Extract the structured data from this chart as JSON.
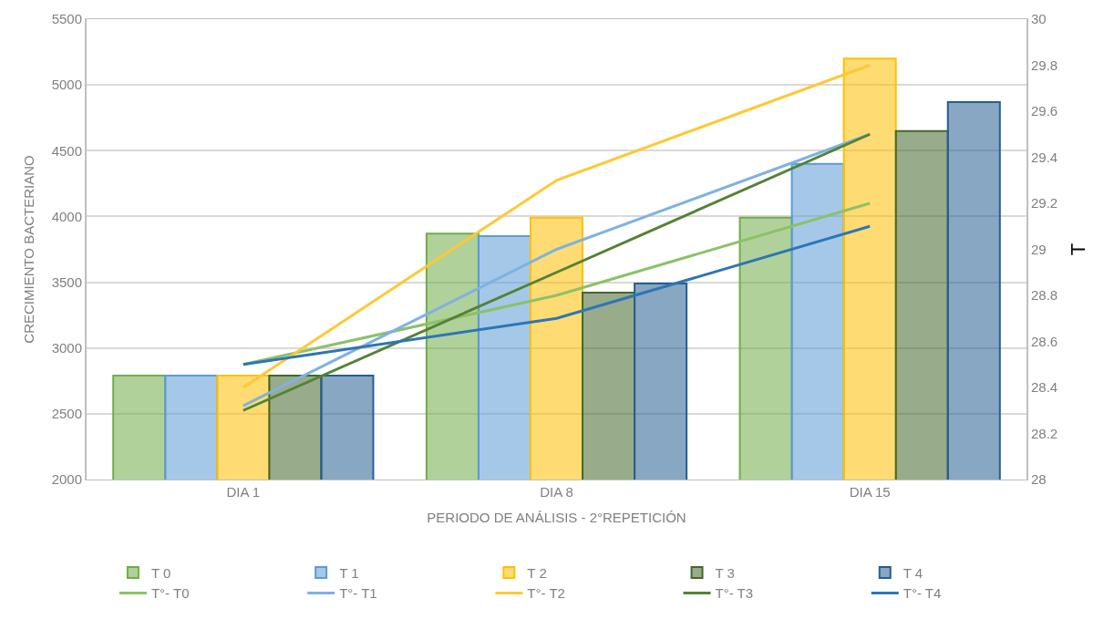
{
  "chart_data": {
    "type": "bar",
    "xlabel": "PERIODO DE ANÁLISIS - 2°REPETICIÓN",
    "ylabel": "CRECIMIENTO BACTERIANO",
    "y2label": "T",
    "categories": [
      "DIA 1",
      "DIA 8",
      "DIA 15"
    ],
    "series": [
      {
        "name": "T 0",
        "color": "#70ad47",
        "values": [
          2790,
          3870,
          3990
        ]
      },
      {
        "name": "T 1",
        "color": "#5b9bd5",
        "values": [
          2790,
          3850,
          4400
        ]
      },
      {
        "name": "T 2",
        "color": "#ffc000",
        "values": [
          2790,
          3990,
          5200
        ]
      },
      {
        "name": "T 3",
        "color": "#43682b",
        "values": [
          2790,
          3420,
          4650
        ]
      },
      {
        "name": "T 4",
        "color": "#255e91",
        "values": [
          2790,
          3490,
          4870
        ]
      },
      {
        "name": "T°- T0",
        "type": "line",
        "axis": "y2",
        "color": "#8cc168",
        "values": [
          28.5,
          28.8,
          29.2
        ]
      },
      {
        "name": "T°- T1",
        "type": "line",
        "axis": "y2",
        "color": "#7fb2e0",
        "values": [
          28.32,
          29.0,
          29.5
        ]
      },
      {
        "name": "T°- T2",
        "type": "line",
        "axis": "y2",
        "color": "#ffc833",
        "values": [
          28.4,
          29.3,
          29.8
        ]
      },
      {
        "name": "T°- T3",
        "type": "line",
        "axis": "y2",
        "color": "#548235",
        "values": [
          28.3,
          28.9,
          29.5
        ]
      },
      {
        "name": "T°- T4",
        "type": "line",
        "axis": "y2",
        "color": "#2e75b6",
        "values": [
          28.5,
          28.7,
          29.1
        ]
      }
    ],
    "ylim": [
      2000,
      5500
    ],
    "yticks": [
      2000,
      2500,
      3000,
      3500,
      4000,
      4500,
      5000,
      5500
    ],
    "y2lim": [
      28,
      30
    ],
    "y2ticks": [
      28,
      28.2,
      28.4,
      28.6,
      28.8,
      29,
      29.2,
      29.4,
      29.6,
      29.8,
      30
    ],
    "grid": "y",
    "legend": "bottom",
    "line_style": "solid",
    "marker": "none"
  }
}
